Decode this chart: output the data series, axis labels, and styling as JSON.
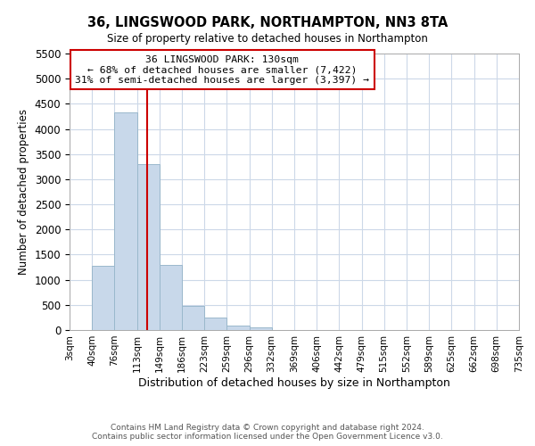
{
  "title": "36, LINGSWOOD PARK, NORTHAMPTON, NN3 8TA",
  "subtitle": "Size of property relative to detached houses in Northampton",
  "xlabel": "Distribution of detached houses by size in Northampton",
  "ylabel": "Number of detached properties",
  "bar_color": "#c8d8ea",
  "bar_edge_color": "#9ab8cc",
  "bins": [
    3,
    40,
    76,
    113,
    149,
    186,
    223,
    259,
    296,
    332,
    369,
    406,
    442,
    479,
    515,
    552,
    589,
    625,
    662,
    698,
    735
  ],
  "values": [
    0,
    1270,
    4330,
    3300,
    1290,
    480,
    240,
    90,
    55,
    0,
    0,
    0,
    0,
    0,
    0,
    0,
    0,
    0,
    0,
    0
  ],
  "tick_labels": [
    "3sqm",
    "40sqm",
    "76sqm",
    "113sqm",
    "149sqm",
    "186sqm",
    "223sqm",
    "259sqm",
    "296sqm",
    "332sqm",
    "369sqm",
    "406sqm",
    "442sqm",
    "479sqm",
    "515sqm",
    "552sqm",
    "589sqm",
    "625sqm",
    "662sqm",
    "698sqm",
    "735sqm"
  ],
  "ylim": [
    0,
    5500
  ],
  "yticks": [
    0,
    500,
    1000,
    1500,
    2000,
    2500,
    3000,
    3500,
    4000,
    4500,
    5000,
    5500
  ],
  "property_size": 130,
  "property_line_color": "#cc0000",
  "annotation_title": "36 LINGSWOOD PARK: 130sqm",
  "annotation_line1": "← 68% of detached houses are smaller (7,422)",
  "annotation_line2": "31% of semi-detached houses are larger (3,397) →",
  "annotation_box_color": "#ffffff",
  "annotation_box_edge": "#cc0000",
  "footer1": "Contains HM Land Registry data © Crown copyright and database right 2024.",
  "footer2": "Contains public sector information licensed under the Open Government Licence v3.0.",
  "background_color": "#ffffff",
  "grid_color": "#ccd8e8"
}
